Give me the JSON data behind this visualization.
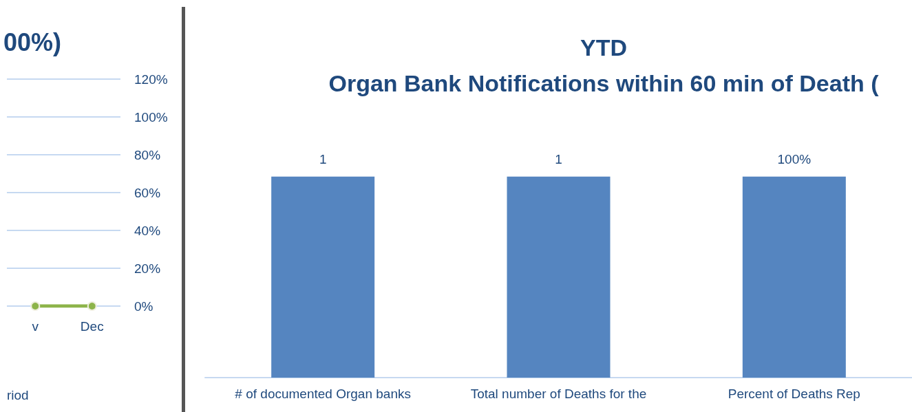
{
  "chart_data": [
    {
      "type": "line",
      "title": "00%)",
      "xlabel": "riod",
      "categories": [
        "v",
        "Dec"
      ],
      "series": [
        {
          "color": "#8db44a",
          "values": [
            0,
            0
          ]
        }
      ],
      "ylim": [
        0,
        120
      ],
      "yticks": [
        {
          "value": 0,
          "label": "0%"
        },
        {
          "value": 20,
          "label": "20%"
        },
        {
          "value": 40,
          "label": "40%"
        },
        {
          "value": 60,
          "label": "60%"
        },
        {
          "value": 80,
          "label": "80%"
        },
        {
          "value": 100,
          "label": "100%"
        },
        {
          "value": 120,
          "label": "120%"
        }
      ],
      "grid": "y",
      "marker": "circle",
      "line_style": "solid"
    },
    {
      "type": "bar",
      "title": "YTD\nOrgan Bank Notifications within 60 min of Death (",
      "categories": [
        "# of documented Organ banks",
        "Total number of Deaths for the",
        "Percent of Deaths Rep"
      ],
      "values": [
        1,
        1,
        1
      ],
      "color": "#5585c0",
      "value_labels": [
        "1",
        "1",
        "100%"
      ]
    }
  ]
}
